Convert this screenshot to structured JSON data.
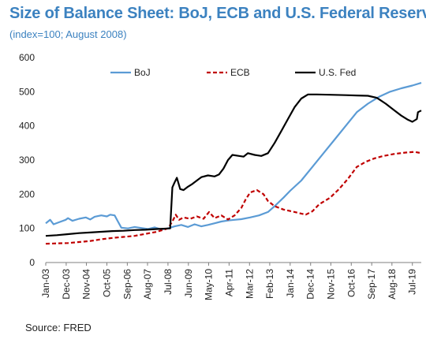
{
  "title": "Size of Balance Sheet: BoJ, ECB and U.S. Federal Reserve",
  "subtitle": "(index=100; August 2008)",
  "source": "Source: FRED",
  "chart_data": {
    "type": "line",
    "title": "Size of Balance Sheet: BoJ, ECB and U.S. Federal Reserve",
    "subtitle": "(index=100; August 2008)",
    "xlabel": "",
    "ylabel": "",
    "ylim": [
      0,
      600
    ],
    "yticks": [
      0,
      100,
      200,
      300,
      400,
      500,
      600
    ],
    "xlim": [
      2003.0,
      2019.9
    ],
    "xticks": [
      {
        "x": 2003.0,
        "label": "Jan-03"
      },
      {
        "x": 2003.92,
        "label": "Dec-03"
      },
      {
        "x": 2004.83,
        "label": "Nov-04"
      },
      {
        "x": 2005.75,
        "label": "Oct-05"
      },
      {
        "x": 2006.67,
        "label": "Sep-06"
      },
      {
        "x": 2007.58,
        "label": "Aug-07"
      },
      {
        "x": 2008.5,
        "label": "Jul-08"
      },
      {
        "x": 2009.42,
        "label": "Jun-09"
      },
      {
        "x": 2010.33,
        "label": "May-10"
      },
      {
        "x": 2011.25,
        "label": "Apr-11"
      },
      {
        "x": 2012.17,
        "label": "Mar-12"
      },
      {
        "x": 2013.08,
        "label": "Feb-13"
      },
      {
        "x": 2014.0,
        "label": "Jan-14"
      },
      {
        "x": 2014.92,
        "label": "Dec-14"
      },
      {
        "x": 2015.83,
        "label": "Nov-15"
      },
      {
        "x": 2016.75,
        "label": "Oct-16"
      },
      {
        "x": 2017.67,
        "label": "Sep-17"
      },
      {
        "x": 2018.58,
        "label": "Aug-18"
      },
      {
        "x": 2019.5,
        "label": "Jul-19"
      }
    ],
    "grid": false,
    "legend_position": "top",
    "series": [
      {
        "name": "BoJ",
        "color": "#5b9bd5",
        "style": "solid",
        "points": [
          [
            2003.0,
            115
          ],
          [
            2003.2,
            125
          ],
          [
            2003.35,
            112
          ],
          [
            2003.6,
            118
          ],
          [
            2003.9,
            125
          ],
          [
            2004.0,
            130
          ],
          [
            2004.2,
            122
          ],
          [
            2004.5,
            128
          ],
          [
            2004.8,
            132
          ],
          [
            2005.0,
            126
          ],
          [
            2005.2,
            134
          ],
          [
            2005.5,
            138
          ],
          [
            2005.75,
            135
          ],
          [
            2005.9,
            140
          ],
          [
            2006.1,
            138
          ],
          [
            2006.25,
            120
          ],
          [
            2006.4,
            102
          ],
          [
            2006.7,
            100
          ],
          [
            2007.0,
            104
          ],
          [
            2007.3,
            101
          ],
          [
            2007.6,
            98
          ],
          [
            2007.9,
            103
          ],
          [
            2008.2,
            97
          ],
          [
            2008.5,
            100
          ],
          [
            2008.8,
            106
          ],
          [
            2009.1,
            110
          ],
          [
            2009.4,
            104
          ],
          [
            2009.7,
            112
          ],
          [
            2010.0,
            106
          ],
          [
            2010.3,
            110
          ],
          [
            2010.6,
            115
          ],
          [
            2010.9,
            120
          ],
          [
            2011.2,
            123
          ],
          [
            2011.5,
            125
          ],
          [
            2011.8,
            127
          ],
          [
            2012.2,
            132
          ],
          [
            2012.6,
            138
          ],
          [
            2013.0,
            148
          ],
          [
            2013.3,
            165
          ],
          [
            2013.7,
            190
          ],
          [
            2014.0,
            210
          ],
          [
            2014.5,
            240
          ],
          [
            2015.0,
            280
          ],
          [
            2015.5,
            320
          ],
          [
            2016.0,
            360
          ],
          [
            2016.5,
            400
          ],
          [
            2017.0,
            440
          ],
          [
            2017.5,
            465
          ],
          [
            2018.0,
            485
          ],
          [
            2018.5,
            500
          ],
          [
            2019.0,
            510
          ],
          [
            2019.5,
            518
          ],
          [
            2019.9,
            526
          ]
        ]
      },
      {
        "name": "ECB",
        "color": "#c00000",
        "style": "dashed",
        "points": [
          [
            2003.0,
            55
          ],
          [
            2003.5,
            56
          ],
          [
            2004.0,
            57
          ],
          [
            2004.5,
            60
          ],
          [
            2005.0,
            63
          ],
          [
            2005.5,
            68
          ],
          [
            2006.0,
            72
          ],
          [
            2006.5,
            75
          ],
          [
            2007.0,
            78
          ],
          [
            2007.5,
            84
          ],
          [
            2008.0,
            90
          ],
          [
            2008.5,
            100
          ],
          [
            2008.7,
            120
          ],
          [
            2008.85,
            140
          ],
          [
            2009.0,
            125
          ],
          [
            2009.2,
            132
          ],
          [
            2009.5,
            128
          ],
          [
            2009.8,
            135
          ],
          [
            2010.1,
            128
          ],
          [
            2010.35,
            148
          ],
          [
            2010.6,
            130
          ],
          [
            2010.9,
            138
          ],
          [
            2011.2,
            126
          ],
          [
            2011.5,
            138
          ],
          [
            2011.8,
            160
          ],
          [
            2012.0,
            185
          ],
          [
            2012.2,
            205
          ],
          [
            2012.5,
            212
          ],
          [
            2012.8,
            200
          ],
          [
            2013.0,
            180
          ],
          [
            2013.3,
            165
          ],
          [
            2013.7,
            155
          ],
          [
            2014.2,
            148
          ],
          [
            2014.7,
            140
          ],
          [
            2015.0,
            150
          ],
          [
            2015.3,
            170
          ],
          [
            2015.8,
            190
          ],
          [
            2016.2,
            215
          ],
          [
            2016.6,
            245
          ],
          [
            2017.0,
            280
          ],
          [
            2017.4,
            295
          ],
          [
            2017.8,
            305
          ],
          [
            2018.2,
            312
          ],
          [
            2018.7,
            318
          ],
          [
            2019.2,
            322
          ],
          [
            2019.6,
            324
          ],
          [
            2019.9,
            320
          ]
        ]
      },
      {
        "name": "U.S. Fed",
        "color": "#000000",
        "style": "solid",
        "points": [
          [
            2003.0,
            78
          ],
          [
            2003.5,
            80
          ],
          [
            2004.0,
            83
          ],
          [
            2004.5,
            86
          ],
          [
            2005.0,
            88
          ],
          [
            2005.5,
            90
          ],
          [
            2006.0,
            92
          ],
          [
            2006.5,
            93
          ],
          [
            2007.0,
            95
          ],
          [
            2007.5,
            96
          ],
          [
            2008.0,
            98
          ],
          [
            2008.6,
            100
          ],
          [
            2008.7,
            220
          ],
          [
            2008.8,
            235
          ],
          [
            2008.9,
            248
          ],
          [
            2009.05,
            215
          ],
          [
            2009.2,
            212
          ],
          [
            2009.4,
            222
          ],
          [
            2009.6,
            230
          ],
          [
            2009.8,
            240
          ],
          [
            2010.0,
            250
          ],
          [
            2010.3,
            255
          ],
          [
            2010.6,
            252
          ],
          [
            2010.8,
            258
          ],
          [
            2011.0,
            275
          ],
          [
            2011.2,
            300
          ],
          [
            2011.4,
            315
          ],
          [
            2011.7,
            312
          ],
          [
            2011.9,
            310
          ],
          [
            2012.1,
            320
          ],
          [
            2012.4,
            315
          ],
          [
            2012.7,
            312
          ],
          [
            2013.0,
            320
          ],
          [
            2013.3,
            350
          ],
          [
            2013.6,
            385
          ],
          [
            2013.9,
            420
          ],
          [
            2014.2,
            455
          ],
          [
            2014.5,
            480
          ],
          [
            2014.8,
            492
          ],
          [
            2015.2,
            492
          ],
          [
            2015.8,
            491
          ],
          [
            2016.5,
            490
          ],
          [
            2017.0,
            489
          ],
          [
            2017.5,
            488
          ],
          [
            2017.9,
            482
          ],
          [
            2018.3,
            465
          ],
          [
            2018.7,
            445
          ],
          [
            2019.0,
            430
          ],
          [
            2019.3,
            418
          ],
          [
            2019.5,
            412
          ],
          [
            2019.7,
            420
          ],
          [
            2019.75,
            440
          ],
          [
            2019.9,
            445
          ]
        ]
      }
    ]
  }
}
